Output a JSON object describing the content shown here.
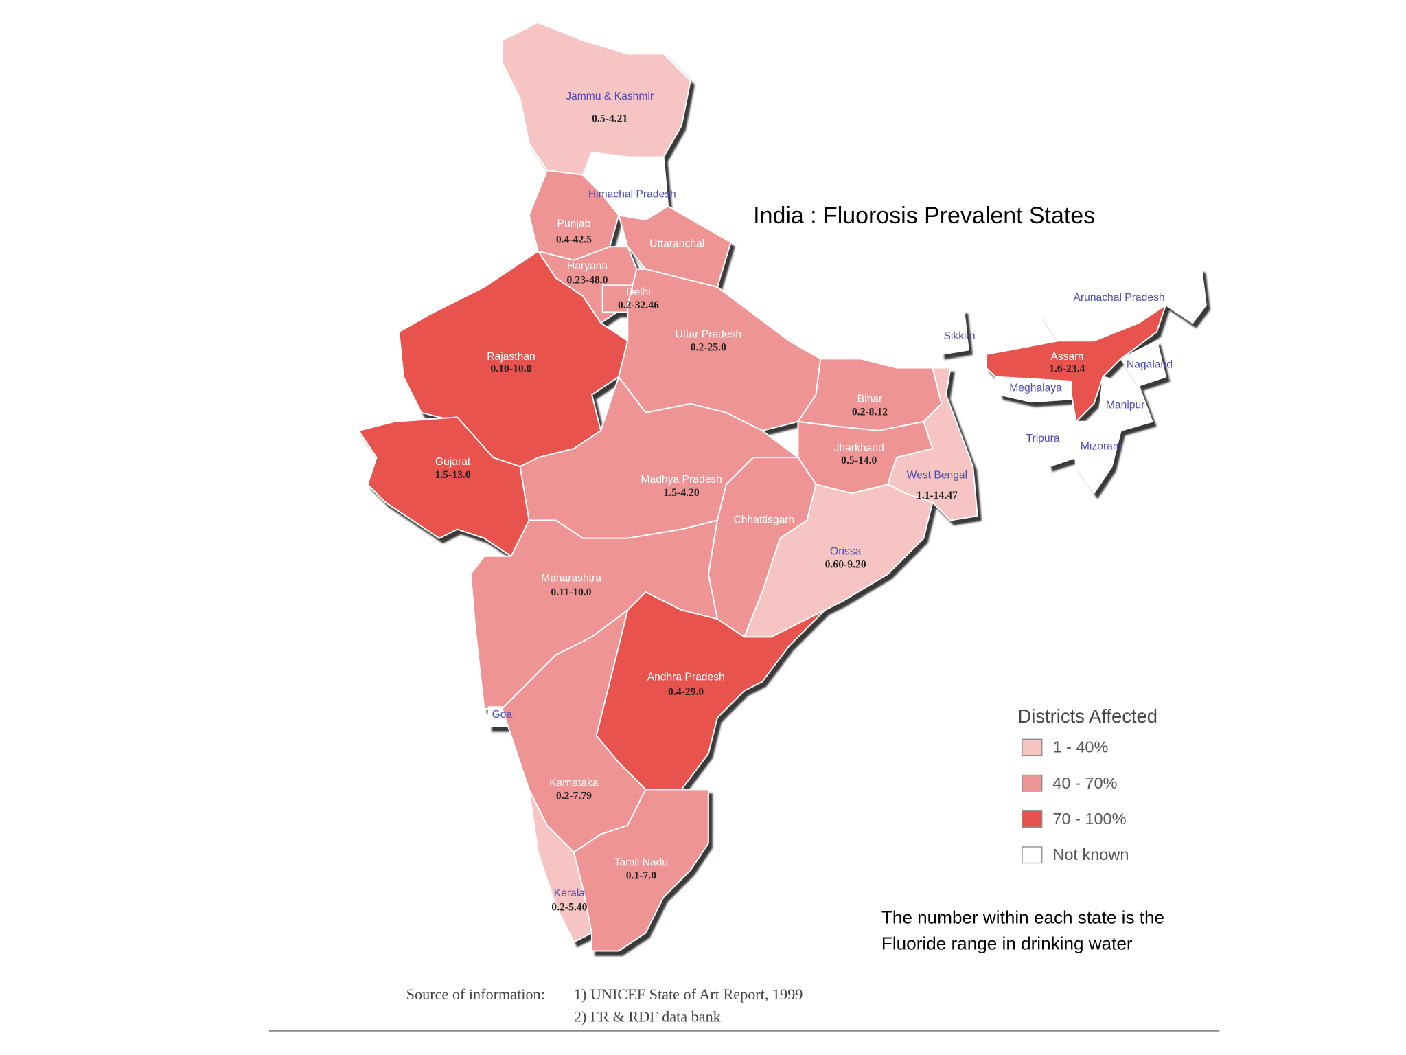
{
  "title": "India : Fluorosis Prevalent States",
  "states": [
    {
      "name": "Jammu & Kashmir",
      "range": "0.5-4.21",
      "category": "1 - 40%"
    },
    {
      "name": "Himachal Pradesh",
      "category": "Not known"
    },
    {
      "name": "Punjab",
      "range": "0.4-42.5",
      "category": "40 - 70%"
    },
    {
      "name": "Uttaranchal",
      "category": "40 - 70%"
    },
    {
      "name": "Haryana",
      "range": "0.23-48.0",
      "category": "40 - 70%"
    },
    {
      "name": "Delhi",
      "range": "0.2-32.46",
      "category": "40 - 70%"
    },
    {
      "name": "Rajasthan",
      "range": "0.10-10.0",
      "category": "70 - 100%"
    },
    {
      "name": "Gujarat",
      "range": "1.5-13.0",
      "category": "70 - 100%"
    },
    {
      "name": "Uttar Pradesh",
      "range": "0.2-25.0",
      "category": "40 - 70%"
    },
    {
      "name": "Bihar",
      "range": "0.2-8.12",
      "category": "40 - 70%"
    },
    {
      "name": "Jharkhand",
      "range": "0.5-14.0",
      "category": "40 - 70%"
    },
    {
      "name": "West Bengal",
      "range": "1.1-14.47",
      "category": "1 - 40%"
    },
    {
      "name": "Sikkim",
      "category": "Not known"
    },
    {
      "name": "Madhya Pradesh",
      "range": "1.5-4.20",
      "category": "40 - 70%"
    },
    {
      "name": "Chhattisgarh",
      "category": "40 - 70%"
    },
    {
      "name": "Orissa",
      "range": "0.60-9.20",
      "category": "1 - 40%"
    },
    {
      "name": "Maharashtra",
      "range": "0.11-10.0",
      "category": "40 - 70%"
    },
    {
      "name": "Andhra Pradesh",
      "range": "0.4-29.0",
      "category": "70 - 100%"
    },
    {
      "name": "Goa",
      "category": "Not known"
    },
    {
      "name": "Karnataka",
      "range": "0.2-7.79",
      "category": "40 - 70%"
    },
    {
      "name": "Kerala",
      "range": "0.2-5.40",
      "category": "1 - 40%"
    },
    {
      "name": "Tamil Nadu",
      "range": "0.1-7.0",
      "category": "40 - 70%"
    },
    {
      "name": "Arunachal Pradesh",
      "category": "Not known"
    },
    {
      "name": "Assam",
      "range": "1.6-23.4",
      "category": "70 - 100%"
    },
    {
      "name": "Meghalaya",
      "category": "Not known"
    },
    {
      "name": "Nagaland",
      "category": "Not known"
    },
    {
      "name": "Manipur",
      "category": "Not known"
    },
    {
      "name": "Tripura",
      "category": "Not known"
    },
    {
      "name": "Mizoram",
      "category": "Not known"
    }
  ],
  "legend": {
    "title": "Districts Affected",
    "items": [
      {
        "label": "1 - 40%",
        "color": "#f7c4c4"
      },
      {
        "label": "40 - 70%",
        "color": "#ef9494"
      },
      {
        "label": "70 - 100%",
        "color": "#e8524e"
      },
      {
        "label": "Not known",
        "color": "#ffffff"
      }
    ]
  },
  "note": [
    "The number within each state is the",
    "Fluoride range in drinking water"
  ],
  "source": {
    "label": "Source of information:",
    "items": [
      "1)  UNICEF State of Art Report, 1999",
      "2)  FR & RDF data bank"
    ]
  }
}
